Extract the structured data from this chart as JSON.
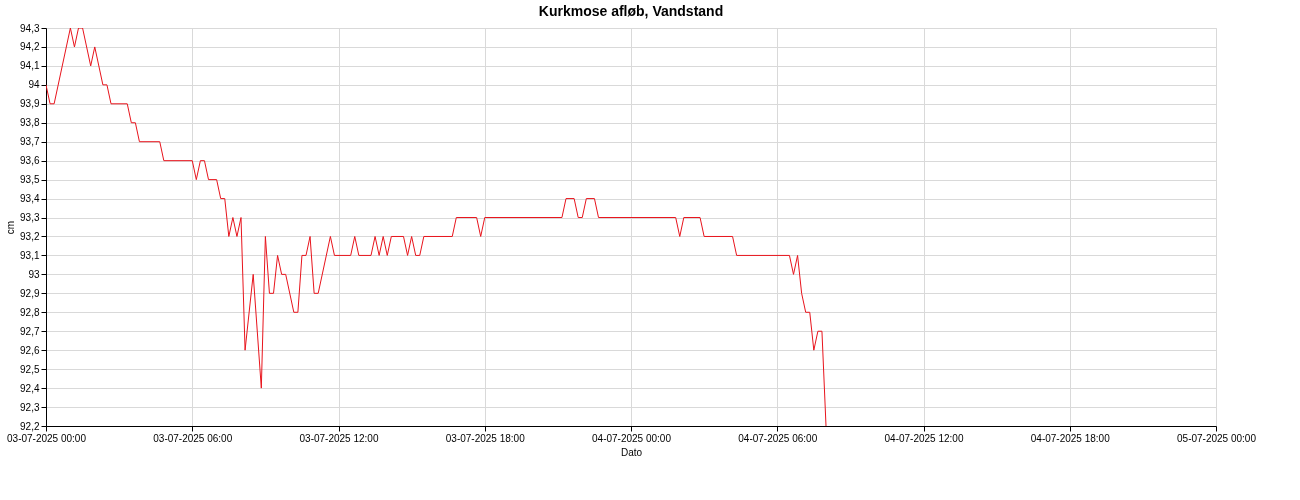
{
  "chart_data": {
    "type": "line",
    "title": "Kurkmose afløb, Vandstand",
    "xlabel": "Dato",
    "ylabel": "cm",
    "grid": true,
    "marker": "none",
    "line_style": "solid",
    "xlim": [
      "2025-07-03T00:00",
      "2025-07-05T00:00"
    ],
    "xticks": [
      {
        "value": "2025-07-03T00:00",
        "label": "03-07-2025 00:00"
      },
      {
        "value": "2025-07-03T06:00",
        "label": "03-07-2025 06:00"
      },
      {
        "value": "2025-07-03T12:00",
        "label": "03-07-2025 12:00"
      },
      {
        "value": "2025-07-03T18:00",
        "label": "03-07-2025 18:00"
      },
      {
        "value": "2025-07-04T00:00",
        "label": "04-07-2025 00:00"
      },
      {
        "value": "2025-07-04T06:00",
        "label": "04-07-2025 06:00"
      },
      {
        "value": "2025-07-04T12:00",
        "label": "04-07-2025 12:00"
      },
      {
        "value": "2025-07-04T18:00",
        "label": "04-07-2025 18:00"
      },
      {
        "value": "2025-07-05T00:00",
        "label": "05-07-2025 00:00"
      }
    ],
    "ylim": [
      92.2,
      94.3
    ],
    "yticks": [
      {
        "value": 92.2,
        "label": "92,2"
      },
      {
        "value": 92.3,
        "label": "92,3"
      },
      {
        "value": 92.4,
        "label": "92,4"
      },
      {
        "value": 92.5,
        "label": "92,5"
      },
      {
        "value": 92.6,
        "label": "92,6"
      },
      {
        "value": 92.7,
        "label": "92,7"
      },
      {
        "value": 92.8,
        "label": "92,8"
      },
      {
        "value": 92.9,
        "label": "92,9"
      },
      93,
      {
        "value": 93.1,
        "label": "93,1"
      },
      {
        "value": 93.2,
        "label": "93,2"
      },
      {
        "value": 93.3,
        "label": "93,3"
      },
      {
        "value": 93.4,
        "label": "93,4"
      },
      {
        "value": 93.5,
        "label": "93,5"
      },
      {
        "value": 93.6,
        "label": "93,6"
      },
      {
        "value": 93.7,
        "label": "93,7"
      },
      {
        "value": 93.8,
        "label": "93,8"
      },
      {
        "value": 93.9,
        "label": "93,9"
      },
      94,
      {
        "value": 94.1,
        "label": "94,1"
      },
      {
        "value": 94.2,
        "label": "94,2"
      },
      {
        "value": 94.3,
        "label": "94,3"
      }
    ],
    "x": [
      "2025-07-03T00:00",
      "2025-07-03T00:10",
      "2025-07-03T00:20",
      "2025-07-03T01:00",
      "2025-07-03T01:10",
      "2025-07-03T01:20",
      "2025-07-03T01:30",
      "2025-07-03T01:50",
      "2025-07-03T02:00",
      "2025-07-03T02:20",
      "2025-07-03T02:30",
      "2025-07-03T02:40",
      "2025-07-03T03:20",
      "2025-07-03T03:30",
      "2025-07-03T03:40",
      "2025-07-03T03:50",
      "2025-07-03T04:40",
      "2025-07-03T04:50",
      "2025-07-03T06:00",
      "2025-07-03T06:10",
      "2025-07-03T06:20",
      "2025-07-03T06:30",
      "2025-07-03T06:40",
      "2025-07-03T07:00",
      "2025-07-03T07:10",
      "2025-07-03T07:20",
      "2025-07-03T07:30",
      "2025-07-03T07:40",
      "2025-07-03T07:50",
      "2025-07-03T08:00",
      "2025-07-03T08:10",
      "2025-07-03T08:30",
      "2025-07-03T08:50",
      "2025-07-03T09:00",
      "2025-07-03T09:10",
      "2025-07-03T09:20",
      "2025-07-03T09:30",
      "2025-07-03T09:40",
      "2025-07-03T09:50",
      "2025-07-03T10:10",
      "2025-07-03T10:20",
      "2025-07-03T10:30",
      "2025-07-03T10:40",
      "2025-07-03T10:50",
      "2025-07-03T11:00",
      "2025-07-03T11:10",
      "2025-07-03T11:40",
      "2025-07-03T11:50",
      "2025-07-03T12:30",
      "2025-07-03T12:40",
      "2025-07-03T12:50",
      "2025-07-03T13:20",
      "2025-07-03T13:30",
      "2025-07-03T13:40",
      "2025-07-03T13:50",
      "2025-07-03T14:00",
      "2025-07-03T14:10",
      "2025-07-03T14:40",
      "2025-07-03T14:50",
      "2025-07-03T15:00",
      "2025-07-03T15:10",
      "2025-07-03T15:20",
      "2025-07-03T15:30",
      "2025-07-03T16:40",
      "2025-07-03T16:50",
      "2025-07-03T17:40",
      "2025-07-03T17:50",
      "2025-07-03T18:00",
      "2025-07-03T21:10",
      "2025-07-03T21:20",
      "2025-07-03T21:40",
      "2025-07-03T21:50",
      "2025-07-03T22:00",
      "2025-07-03T22:10",
      "2025-07-03T22:30",
      "2025-07-03T22:40",
      "2025-07-04T01:50",
      "2025-07-04T02:00",
      "2025-07-04T02:10",
      "2025-07-04T02:50",
      "2025-07-04T03:00",
      "2025-07-04T04:10",
      "2025-07-04T04:20",
      "2025-07-04T06:30",
      "2025-07-04T06:40",
      "2025-07-04T06:50",
      "2025-07-04T07:00",
      "2025-07-04T07:10",
      "2025-07-04T07:20",
      "2025-07-04T07:30",
      "2025-07-04T07:40",
      "2025-07-04T07:50",
      "2025-07-04T08:00"
    ],
    "series": [
      {
        "color": "#e8141c",
        "values": [
          94.0,
          93.9,
          93.9,
          94.3,
          94.2,
          94.3,
          94.3,
          94.1,
          94.2,
          94.0,
          94.0,
          93.9,
          93.9,
          93.8,
          93.8,
          93.7,
          93.7,
          93.6,
          93.6,
          93.5,
          93.6,
          93.6,
          93.5,
          93.5,
          93.4,
          93.4,
          93.2,
          93.3,
          93.2,
          93.3,
          92.6,
          93.0,
          92.4,
          93.2,
          92.9,
          92.9,
          93.1,
          93.0,
          93.0,
          92.8,
          92.8,
          93.1,
          93.1,
          93.2,
          92.9,
          92.9,
          93.2,
          93.1,
          93.1,
          93.2,
          93.1,
          93.1,
          93.2,
          93.1,
          93.2,
          93.1,
          93.2,
          93.2,
          93.1,
          93.2,
          93.1,
          93.1,
          93.2,
          93.2,
          93.3,
          93.3,
          93.2,
          93.3,
          93.3,
          93.4,
          93.4,
          93.3,
          93.3,
          93.4,
          93.4,
          93.3,
          93.3,
          93.2,
          93.3,
          93.3,
          93.2,
          93.2,
          93.1,
          93.1,
          93.0,
          93.1,
          92.9,
          92.8,
          92.8,
          92.6,
          92.7,
          92.7,
          92.2
        ]
      }
    ]
  }
}
